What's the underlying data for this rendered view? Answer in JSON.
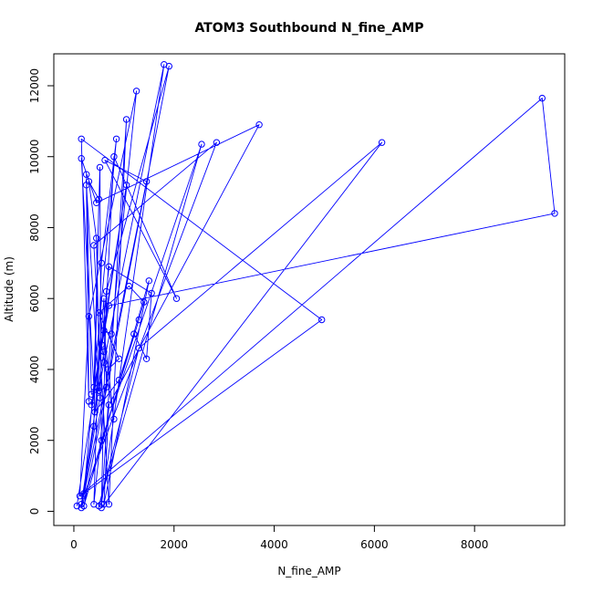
{
  "chart_data": {
    "type": "line",
    "title": "ATOM3 Southbound N_fine_AMP",
    "xlabel": "N_fine_AMP",
    "ylabel": "Altitude (m)",
    "xlim": [
      -400,
      9800
    ],
    "ylim": [
      -400,
      12900
    ],
    "xticks": [
      0,
      2000,
      4000,
      6000,
      8000
    ],
    "yticks": [
      0,
      2000,
      4000,
      6000,
      8000,
      10000,
      12000
    ],
    "grid": false,
    "legend": "none",
    "colors": {
      "series": "#0000ff",
      "axis": "#000000"
    },
    "marker": "open-circle",
    "series": [
      {
        "values": [
          [
            60,
            150
          ],
          [
            1050,
            9200
          ],
          [
            350,
            3000
          ],
          [
            700,
            5800
          ],
          [
            9600,
            8400
          ],
          [
            9350,
            11650
          ],
          [
            120,
            430
          ],
          [
            300,
            5500
          ],
          [
            1250,
            11850
          ],
          [
            400,
            200
          ],
          [
            550,
            7000
          ],
          [
            850,
            10500
          ],
          [
            200,
            500
          ],
          [
            4950,
            5400
          ],
          [
            150,
            10500
          ],
          [
            300,
            3100
          ],
          [
            250,
            9200
          ],
          [
            500,
            3400
          ],
          [
            600,
            4200
          ],
          [
            1800,
            12600
          ],
          [
            550,
            200
          ],
          [
            650,
            6200
          ],
          [
            1900,
            12550
          ],
          [
            200,
            150
          ],
          [
            1500,
            6500
          ],
          [
            600,
            200
          ],
          [
            700,
            3000
          ],
          [
            3700,
            10900
          ],
          [
            450,
            8700
          ],
          [
            150,
            9950
          ],
          [
            400,
            3500
          ],
          [
            520,
            9700
          ],
          [
            550,
            2000
          ],
          [
            2550,
            10350
          ],
          [
            500,
            150
          ],
          [
            1300,
            4600
          ],
          [
            6150,
            10400
          ],
          [
            550,
            100
          ],
          [
            1050,
            11050
          ],
          [
            700,
            200
          ],
          [
            400,
            7500
          ],
          [
            2850,
            10400
          ],
          [
            200,
            450
          ],
          [
            1450,
            9300
          ],
          [
            620,
            9900
          ],
          [
            2050,
            6000
          ],
          [
            800,
            10000
          ],
          [
            600,
            4500
          ],
          [
            150,
            200
          ],
          [
            400,
            2400
          ],
          [
            500,
            8800
          ],
          [
            300,
            9300
          ],
          [
            450,
            7700
          ],
          [
            520,
            3200
          ],
          [
            150,
            100
          ],
          [
            1300,
            5400
          ],
          [
            1400,
            5900
          ],
          [
            1100,
            6350
          ],
          [
            500,
            5600
          ],
          [
            900,
            4300
          ],
          [
            680,
            4000
          ],
          [
            750,
            5000
          ],
          [
            600,
            5100
          ],
          [
            800,
            2600
          ],
          [
            550,
            4700
          ],
          [
            700,
            6900
          ],
          [
            1550,
            6150
          ],
          [
            1450,
            4300
          ],
          [
            1200,
            5000
          ],
          [
            900,
            3700
          ],
          [
            420,
            2800
          ],
          [
            600,
            6000
          ],
          [
            650,
            3500
          ],
          [
            350,
            3300
          ],
          [
            250,
            9500
          ]
        ]
      }
    ]
  }
}
